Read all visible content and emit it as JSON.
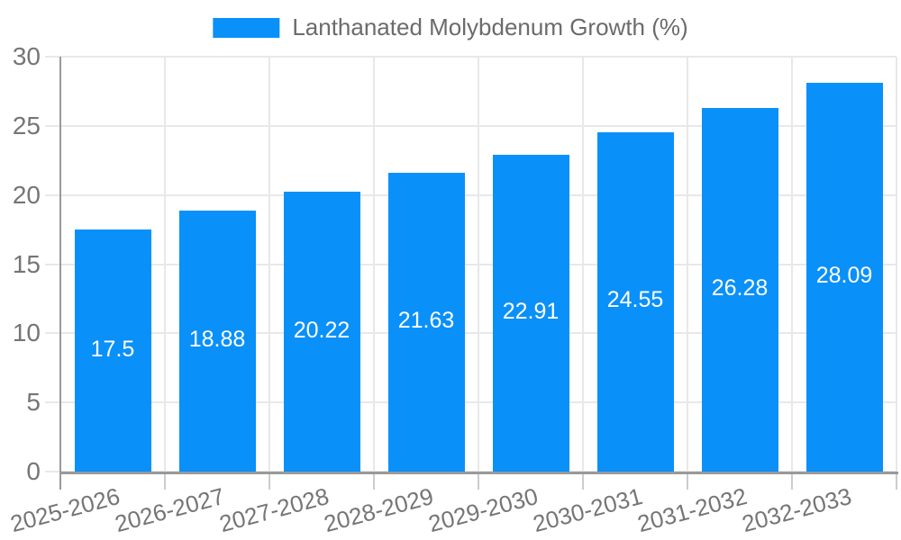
{
  "chart_data": {
    "type": "bar",
    "series_name": "Lanthanated Molybdenum Growth (%)",
    "categories": [
      "2025-2026",
      "2026-2027",
      "2027-2028",
      "2028-2029",
      "2029-2030",
      "2030-2031",
      "2031-2032",
      "2032-2033"
    ],
    "values": [
      17.5,
      18.88,
      20.22,
      21.63,
      22.91,
      24.55,
      26.28,
      28.09
    ],
    "data_labels": [
      "17.5",
      "18.88",
      "20.22",
      "21.63",
      "22.91",
      "24.55",
      "26.28",
      "28.09"
    ],
    "ylim": [
      0,
      30
    ],
    "yticks": [
      0,
      5,
      10,
      15,
      20,
      25,
      30
    ],
    "grid": true,
    "legend_position": "top-center",
    "colors": {
      "bar": "#0a90f9",
      "grid": "#e8e8e8",
      "axis": "#999999",
      "tick": "#cccccc",
      "tick_label": "#757575",
      "legend_label": "#6b6b6b",
      "bar_label": "#ffffff",
      "background": "#ffffff"
    }
  }
}
